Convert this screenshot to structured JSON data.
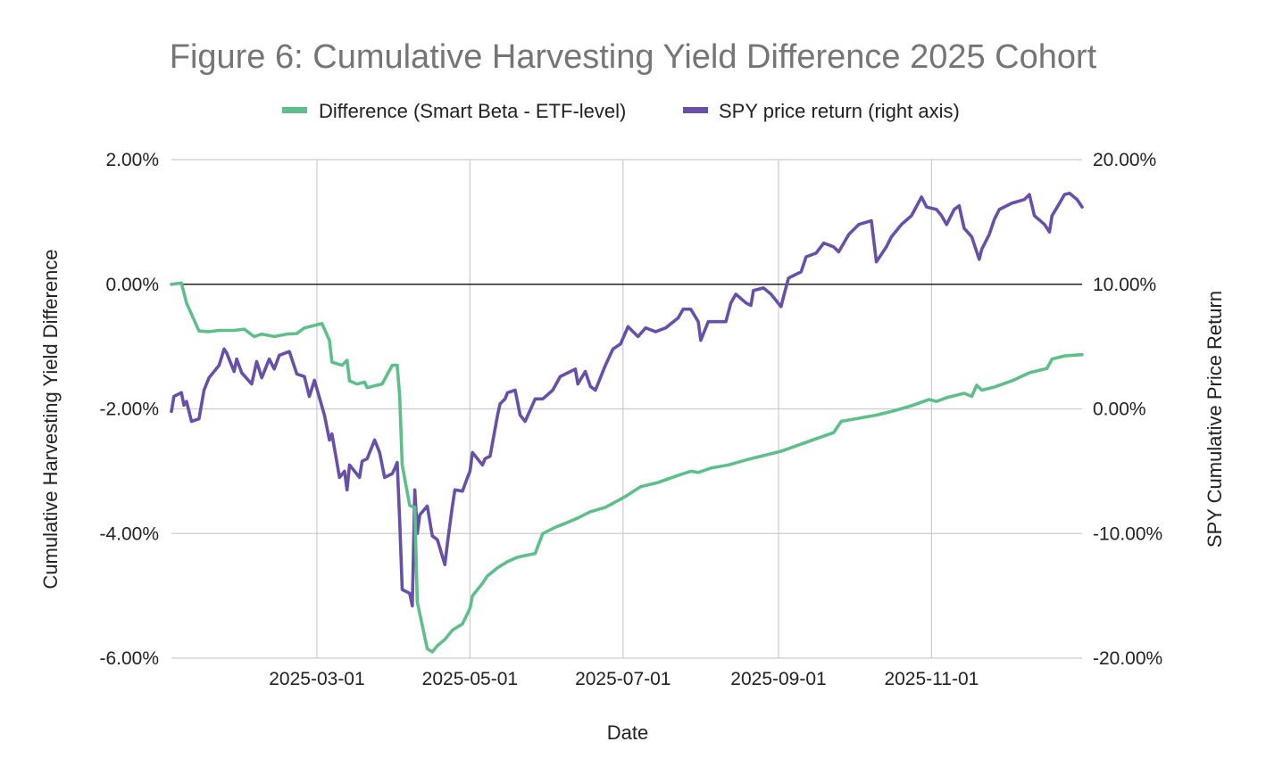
{
  "chart_data": {
    "type": "line",
    "title": "Figure 6: Cumulative Harvesting Yield Difference 2025 Cohort",
    "xlabel": "Date",
    "ylabel": "Cumulative Harvesting Yield Difference",
    "ylabel_right": "SPY Cumulative Price Return",
    "x_ticks": [
      "2025-03-01",
      "2025-05-01",
      "2025-07-01",
      "2025-09-01",
      "2025-11-01"
    ],
    "y_ticks": [
      "2.00%",
      "0.00%",
      "-2.00%",
      "-4.00%",
      "-6.00%"
    ],
    "y_ticks_right": [
      "20.00%",
      "10.00%",
      "0.00%",
      "-10.00%",
      "-20.00%"
    ],
    "ylim": [
      -6,
      2
    ],
    "ylim_right": [
      -20,
      20
    ],
    "xlim": [
      "2025-01-02",
      "2025-12-31"
    ],
    "grid": true,
    "legend_position": "top",
    "series": [
      {
        "name": "Difference (Smart Beta - ETF-level)",
        "axis": "left",
        "color": "#5ebf8a",
        "unit": "%",
        "points": [
          [
            "2025-01-02",
            0.0
          ],
          [
            "2025-01-06",
            0.02
          ],
          [
            "2025-01-08",
            -0.3
          ],
          [
            "2025-01-13",
            -0.75
          ],
          [
            "2025-01-17",
            -0.76
          ],
          [
            "2025-01-21",
            -0.74
          ],
          [
            "2025-01-27",
            -0.74
          ],
          [
            "2025-01-31",
            -0.72
          ],
          [
            "2025-02-04",
            -0.84
          ],
          [
            "2025-02-07",
            -0.8
          ],
          [
            "2025-02-12",
            -0.84
          ],
          [
            "2025-02-17",
            -0.8
          ],
          [
            "2025-02-21",
            -0.79
          ],
          [
            "2025-02-24",
            -0.7
          ],
          [
            "2025-02-27",
            -0.67
          ],
          [
            "2025-03-03",
            -0.63
          ],
          [
            "2025-03-06",
            -0.9
          ],
          [
            "2025-03-07",
            -1.25
          ],
          [
            "2025-03-11",
            -1.3
          ],
          [
            "2025-03-13",
            -1.22
          ],
          [
            "2025-03-14",
            -1.55
          ],
          [
            "2025-03-17",
            -1.6
          ],
          [
            "2025-03-20",
            -1.57
          ],
          [
            "2025-03-21",
            -1.66
          ],
          [
            "2025-03-25",
            -1.62
          ],
          [
            "2025-03-27",
            -1.6
          ],
          [
            "2025-03-31",
            -1.3
          ],
          [
            "2025-04-02",
            -1.3
          ],
          [
            "2025-04-03",
            -1.8
          ],
          [
            "2025-04-04",
            -2.9
          ],
          [
            "2025-04-07",
            -3.55
          ],
          [
            "2025-04-09",
            -3.58
          ],
          [
            "2025-04-10",
            -5.1
          ],
          [
            "2025-04-14",
            -5.85
          ],
          [
            "2025-04-16",
            -5.9
          ],
          [
            "2025-04-18",
            -5.8
          ],
          [
            "2025-04-21",
            -5.7
          ],
          [
            "2025-04-24",
            -5.55
          ],
          [
            "2025-04-28",
            -5.45
          ],
          [
            "2025-05-01",
            -5.2
          ],
          [
            "2025-05-02",
            -5.0
          ],
          [
            "2025-05-06",
            -4.8
          ],
          [
            "2025-05-08",
            -4.68
          ],
          [
            "2025-05-12",
            -4.55
          ],
          [
            "2025-05-16",
            -4.45
          ],
          [
            "2025-05-20",
            -4.38
          ],
          [
            "2025-05-27",
            -4.32
          ],
          [
            "2025-05-30",
            -4.0
          ],
          [
            "2025-06-04",
            -3.9
          ],
          [
            "2025-06-09",
            -3.82
          ],
          [
            "2025-06-13",
            -3.75
          ],
          [
            "2025-06-18",
            -3.65
          ],
          [
            "2025-06-24",
            -3.58
          ],
          [
            "2025-06-30",
            -3.45
          ],
          [
            "2025-07-03",
            -3.38
          ],
          [
            "2025-07-08",
            -3.25
          ],
          [
            "2025-07-15",
            -3.18
          ],
          [
            "2025-07-22",
            -3.08
          ],
          [
            "2025-07-28",
            -3.0
          ],
          [
            "2025-07-31",
            -3.02
          ],
          [
            "2025-08-05",
            -2.95
          ],
          [
            "2025-08-12",
            -2.9
          ],
          [
            "2025-08-19",
            -2.82
          ],
          [
            "2025-08-26",
            -2.75
          ],
          [
            "2025-09-02",
            -2.68
          ],
          [
            "2025-09-09",
            -2.58
          ],
          [
            "2025-09-16",
            -2.48
          ],
          [
            "2025-09-23",
            -2.38
          ],
          [
            "2025-09-26",
            -2.2
          ],
          [
            "2025-10-03",
            -2.15
          ],
          [
            "2025-10-10",
            -2.1
          ],
          [
            "2025-10-17",
            -2.03
          ],
          [
            "2025-10-24",
            -1.95
          ],
          [
            "2025-10-31",
            -1.85
          ],
          [
            "2025-11-03",
            -1.88
          ],
          [
            "2025-11-07",
            -1.82
          ],
          [
            "2025-11-14",
            -1.75
          ],
          [
            "2025-11-17",
            -1.8
          ],
          [
            "2025-11-19",
            -1.62
          ],
          [
            "2025-11-21",
            -1.7
          ],
          [
            "2025-11-26",
            -1.65
          ],
          [
            "2025-12-03",
            -1.55
          ],
          [
            "2025-12-10",
            -1.42
          ],
          [
            "2025-12-17",
            -1.35
          ],
          [
            "2025-12-19",
            -1.2
          ],
          [
            "2025-12-24",
            -1.15
          ],
          [
            "2025-12-31",
            -1.13
          ]
        ]
      },
      {
        "name": "SPY price return (right axis)",
        "axis": "right",
        "color": "#6750a8",
        "unit": "%",
        "points": [
          [
            "2025-01-02",
            -0.2
          ],
          [
            "2025-01-03",
            1.0
          ],
          [
            "2025-01-06",
            1.3
          ],
          [
            "2025-01-07",
            0.3
          ],
          [
            "2025-01-08",
            0.6
          ],
          [
            "2025-01-10",
            -1.0
          ],
          [
            "2025-01-13",
            -0.8
          ],
          [
            "2025-01-15",
            1.5
          ],
          [
            "2025-01-17",
            2.5
          ],
          [
            "2025-01-21",
            3.5
          ],
          [
            "2025-01-23",
            4.8
          ],
          [
            "2025-01-24",
            4.5
          ],
          [
            "2025-01-27",
            3.0
          ],
          [
            "2025-01-28",
            4.0
          ],
          [
            "2025-01-30",
            2.9
          ],
          [
            "2025-02-03",
            2.0
          ],
          [
            "2025-02-05",
            3.8
          ],
          [
            "2025-02-07",
            2.5
          ],
          [
            "2025-02-10",
            4.0
          ],
          [
            "2025-02-12",
            3.2
          ],
          [
            "2025-02-14",
            4.3
          ],
          [
            "2025-02-18",
            4.6
          ],
          [
            "2025-02-21",
            2.8
          ],
          [
            "2025-02-24",
            2.6
          ],
          [
            "2025-02-26",
            1.0
          ],
          [
            "2025-02-28",
            2.3
          ],
          [
            "2025-03-03",
            0.2
          ],
          [
            "2025-03-04",
            -0.5
          ],
          [
            "2025-03-06",
            -2.5
          ],
          [
            "2025-03-07",
            -2.0
          ],
          [
            "2025-03-10",
            -5.5
          ],
          [
            "2025-03-12",
            -5.0
          ],
          [
            "2025-03-13",
            -6.5
          ],
          [
            "2025-03-14",
            -4.5
          ],
          [
            "2025-03-18",
            -5.5
          ],
          [
            "2025-03-19",
            -4.2
          ],
          [
            "2025-03-21",
            -4.0
          ],
          [
            "2025-03-24",
            -2.5
          ],
          [
            "2025-03-26",
            -3.5
          ],
          [
            "2025-03-28",
            -5.5
          ],
          [
            "2025-03-31",
            -5.2
          ],
          [
            "2025-04-01",
            -4.8
          ],
          [
            "2025-04-02",
            -4.3
          ],
          [
            "2025-04-03",
            -9.0
          ],
          [
            "2025-04-04",
            -14.5
          ],
          [
            "2025-04-07",
            -14.8
          ],
          [
            "2025-04-08",
            -15.8
          ],
          [
            "2025-04-09",
            -6.5
          ],
          [
            "2025-04-10",
            -10.0
          ],
          [
            "2025-04-11",
            -8.5
          ],
          [
            "2025-04-14",
            -7.8
          ],
          [
            "2025-04-16",
            -10.2
          ],
          [
            "2025-04-18",
            -10.5
          ],
          [
            "2025-04-21",
            -12.5
          ],
          [
            "2025-04-22",
            -10.8
          ],
          [
            "2025-04-24",
            -7.8
          ],
          [
            "2025-04-25",
            -6.5
          ],
          [
            "2025-04-28",
            -6.6
          ],
          [
            "2025-04-30",
            -5.5
          ],
          [
            "2025-05-01",
            -5.0
          ],
          [
            "2025-05-02",
            -3.5
          ],
          [
            "2025-05-06",
            -4.5
          ],
          [
            "2025-05-07",
            -4.0
          ],
          [
            "2025-05-09",
            -3.8
          ],
          [
            "2025-05-12",
            -0.5
          ],
          [
            "2025-05-13",
            0.4
          ],
          [
            "2025-05-15",
            0.8
          ],
          [
            "2025-05-16",
            1.3
          ],
          [
            "2025-05-19",
            1.5
          ],
          [
            "2025-05-21",
            -0.5
          ],
          [
            "2025-05-23",
            -1.0
          ],
          [
            "2025-05-27",
            0.8
          ],
          [
            "2025-05-30",
            0.8
          ],
          [
            "2025-06-03",
            1.5
          ],
          [
            "2025-06-06",
            2.6
          ],
          [
            "2025-06-10",
            3.0
          ],
          [
            "2025-06-12",
            3.2
          ],
          [
            "2025-06-13",
            2.0
          ],
          [
            "2025-06-16",
            3.0
          ],
          [
            "2025-06-18",
            1.8
          ],
          [
            "2025-06-20",
            1.5
          ],
          [
            "2025-06-24",
            3.5
          ],
          [
            "2025-06-27",
            4.8
          ],
          [
            "2025-06-30",
            5.2
          ],
          [
            "2025-07-03",
            6.6
          ],
          [
            "2025-07-07",
            5.8
          ],
          [
            "2025-07-10",
            6.5
          ],
          [
            "2025-07-14",
            6.2
          ],
          [
            "2025-07-18",
            6.5
          ],
          [
            "2025-07-23",
            7.3
          ],
          [
            "2025-07-25",
            8.0
          ],
          [
            "2025-07-28",
            8.0
          ],
          [
            "2025-07-31",
            7.0
          ],
          [
            "2025-08-01",
            5.5
          ],
          [
            "2025-08-04",
            7.0
          ],
          [
            "2025-08-07",
            7.0
          ],
          [
            "2025-08-11",
            7.0
          ],
          [
            "2025-08-13",
            8.5
          ],
          [
            "2025-08-15",
            9.2
          ],
          [
            "2025-08-19",
            8.5
          ],
          [
            "2025-08-21",
            8.3
          ],
          [
            "2025-08-22",
            9.5
          ],
          [
            "2025-08-26",
            9.7
          ],
          [
            "2025-08-29",
            9.2
          ],
          [
            "2025-09-02",
            8.2
          ],
          [
            "2025-09-03",
            9.0
          ],
          [
            "2025-09-05",
            10.5
          ],
          [
            "2025-09-10",
            11.0
          ],
          [
            "2025-09-12",
            12.2
          ],
          [
            "2025-09-16",
            12.5
          ],
          [
            "2025-09-19",
            13.3
          ],
          [
            "2025-09-23",
            13.0
          ],
          [
            "2025-09-25",
            12.6
          ],
          [
            "2025-09-29",
            14.0
          ],
          [
            "2025-10-03",
            14.8
          ],
          [
            "2025-10-08",
            15.1
          ],
          [
            "2025-10-10",
            11.8
          ],
          [
            "2025-10-14",
            13.0
          ],
          [
            "2025-10-16",
            13.8
          ],
          [
            "2025-10-20",
            14.8
          ],
          [
            "2025-10-24",
            15.5
          ],
          [
            "2025-10-28",
            17.0
          ],
          [
            "2025-10-30",
            16.2
          ],
          [
            "2025-11-03",
            16.0
          ],
          [
            "2025-11-05",
            15.5
          ],
          [
            "2025-11-07",
            14.8
          ],
          [
            "2025-11-10",
            16.0
          ],
          [
            "2025-11-12",
            16.3
          ],
          [
            "2025-11-14",
            14.5
          ],
          [
            "2025-11-17",
            13.8
          ],
          [
            "2025-11-20",
            12.0
          ],
          [
            "2025-11-21",
            12.8
          ],
          [
            "2025-11-24",
            14.0
          ],
          [
            "2025-11-26",
            15.2
          ],
          [
            "2025-11-28",
            16.0
          ],
          [
            "2025-12-03",
            16.5
          ],
          [
            "2025-12-08",
            16.8
          ],
          [
            "2025-12-10",
            17.2
          ],
          [
            "2025-12-12",
            15.5
          ],
          [
            "2025-12-16",
            14.8
          ],
          [
            "2025-12-18",
            14.2
          ],
          [
            "2025-12-19",
            15.5
          ],
          [
            "2025-12-22",
            16.5
          ],
          [
            "2025-12-24",
            17.2
          ],
          [
            "2025-12-26",
            17.3
          ],
          [
            "2025-12-29",
            16.8
          ],
          [
            "2025-12-30",
            16.5
          ],
          [
            "2025-12-31",
            16.2
          ]
        ]
      }
    ]
  }
}
